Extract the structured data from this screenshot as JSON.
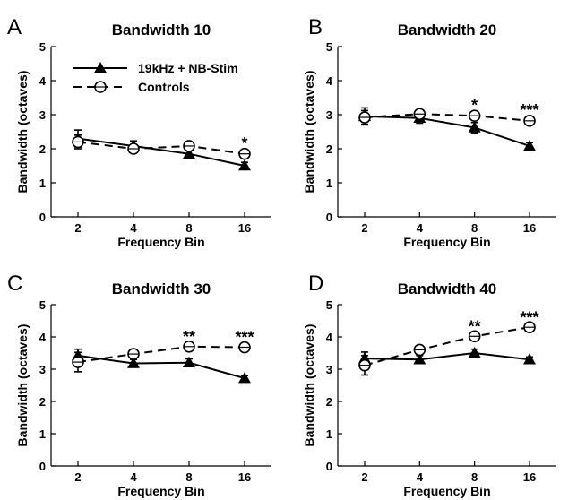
{
  "chart_data": [
    {
      "type": "line",
      "panel_label": "A",
      "title": "Bandwidth 10",
      "xlabel": "Frequency Bin",
      "ylabel": "Bandwidth (octaves)",
      "categories": [
        "2",
        "4",
        "8",
        "16"
      ],
      "ylim": [
        0,
        5
      ],
      "yticks": [
        "0",
        "1",
        "2",
        "3",
        "4",
        "5"
      ],
      "series": [
        {
          "name": "19kHz + NB-Stim",
          "style": "solid-triangle",
          "values": [
            2.3,
            2.08,
            1.85,
            1.5
          ],
          "errors": [
            0.25,
            0.15,
            0.12,
            0.1
          ]
        },
        {
          "name": "Controls",
          "style": "dashed-circle",
          "values": [
            2.2,
            2.0,
            2.08,
            1.85
          ],
          "errors": [
            0.2,
            0.1,
            0.1,
            0.1
          ]
        }
      ],
      "significance": [
        "",
        "",
        "",
        "*"
      ],
      "legend": {
        "visible": true,
        "placement": "top-left"
      }
    },
    {
      "type": "line",
      "panel_label": "B",
      "title": "Bandwidth 20",
      "xlabel": "Frequency Bin",
      "ylabel": "Bandwidth (octaves)",
      "categories": [
        "2",
        "4",
        "8",
        "16"
      ],
      "ylim": [
        0,
        5
      ],
      "yticks": [
        "0",
        "1",
        "2",
        "3",
        "4",
        "5"
      ],
      "series": [
        {
          "name": "19kHz + NB-Stim",
          "style": "solid-triangle",
          "values": [
            2.95,
            2.9,
            2.62,
            2.08
          ],
          "errors": [
            0.25,
            0.15,
            0.15,
            0.1
          ]
        },
        {
          "name": "Controls",
          "style": "dashed-circle",
          "values": [
            2.92,
            3.02,
            2.97,
            2.82
          ],
          "errors": [
            0.2,
            0.1,
            0.1,
            0.1
          ]
        }
      ],
      "significance": [
        "",
        "",
        "*",
        "***"
      ],
      "legend": {
        "visible": false
      }
    },
    {
      "type": "line",
      "panel_label": "C",
      "title": "Bandwidth 30",
      "xlabel": "Frequency Bin",
      "ylabel": "Bandwidth (octaves)",
      "categories": [
        "2",
        "4",
        "8",
        "16"
      ],
      "ylim": [
        0,
        5
      ],
      "yticks": [
        "0",
        "1",
        "2",
        "3",
        "4",
        "5"
      ],
      "series": [
        {
          "name": "19kHz + NB-Stim",
          "style": "solid-triangle",
          "values": [
            3.42,
            3.18,
            3.2,
            2.72
          ],
          "errors": [
            0.2,
            0.12,
            0.12,
            0.08
          ]
        },
        {
          "name": "Controls",
          "style": "dashed-circle",
          "values": [
            3.22,
            3.47,
            3.7,
            3.68
          ],
          "errors": [
            0.3,
            0.1,
            0.08,
            0.08
          ]
        }
      ],
      "significance": [
        "",
        "",
        "**",
        "***"
      ],
      "legend": {
        "visible": false
      }
    },
    {
      "type": "line",
      "panel_label": "D",
      "title": "Bandwidth 40",
      "xlabel": "Frequency Bin",
      "ylabel": "Bandwidth (octaves)",
      "categories": [
        "2",
        "4",
        "8",
        "16"
      ],
      "ylim": [
        0,
        5
      ],
      "yticks": [
        "0",
        "1",
        "2",
        "3",
        "4",
        "5"
      ],
      "series": [
        {
          "name": "19kHz + NB-Stim",
          "style": "solid-triangle",
          "values": [
            3.33,
            3.3,
            3.5,
            3.3
          ],
          "errors": [
            0.2,
            0.12,
            0.12,
            0.08
          ]
        },
        {
          "name": "Controls",
          "style": "dashed-circle",
          "values": [
            3.12,
            3.6,
            4.02,
            4.3
          ],
          "errors": [
            0.3,
            0.12,
            0.08,
            0.08
          ]
        }
      ],
      "significance": [
        "",
        "",
        "**",
        "***"
      ],
      "legend": {
        "visible": false
      }
    }
  ],
  "colors": {
    "line": "#000000",
    "background": "#ffffff"
  }
}
